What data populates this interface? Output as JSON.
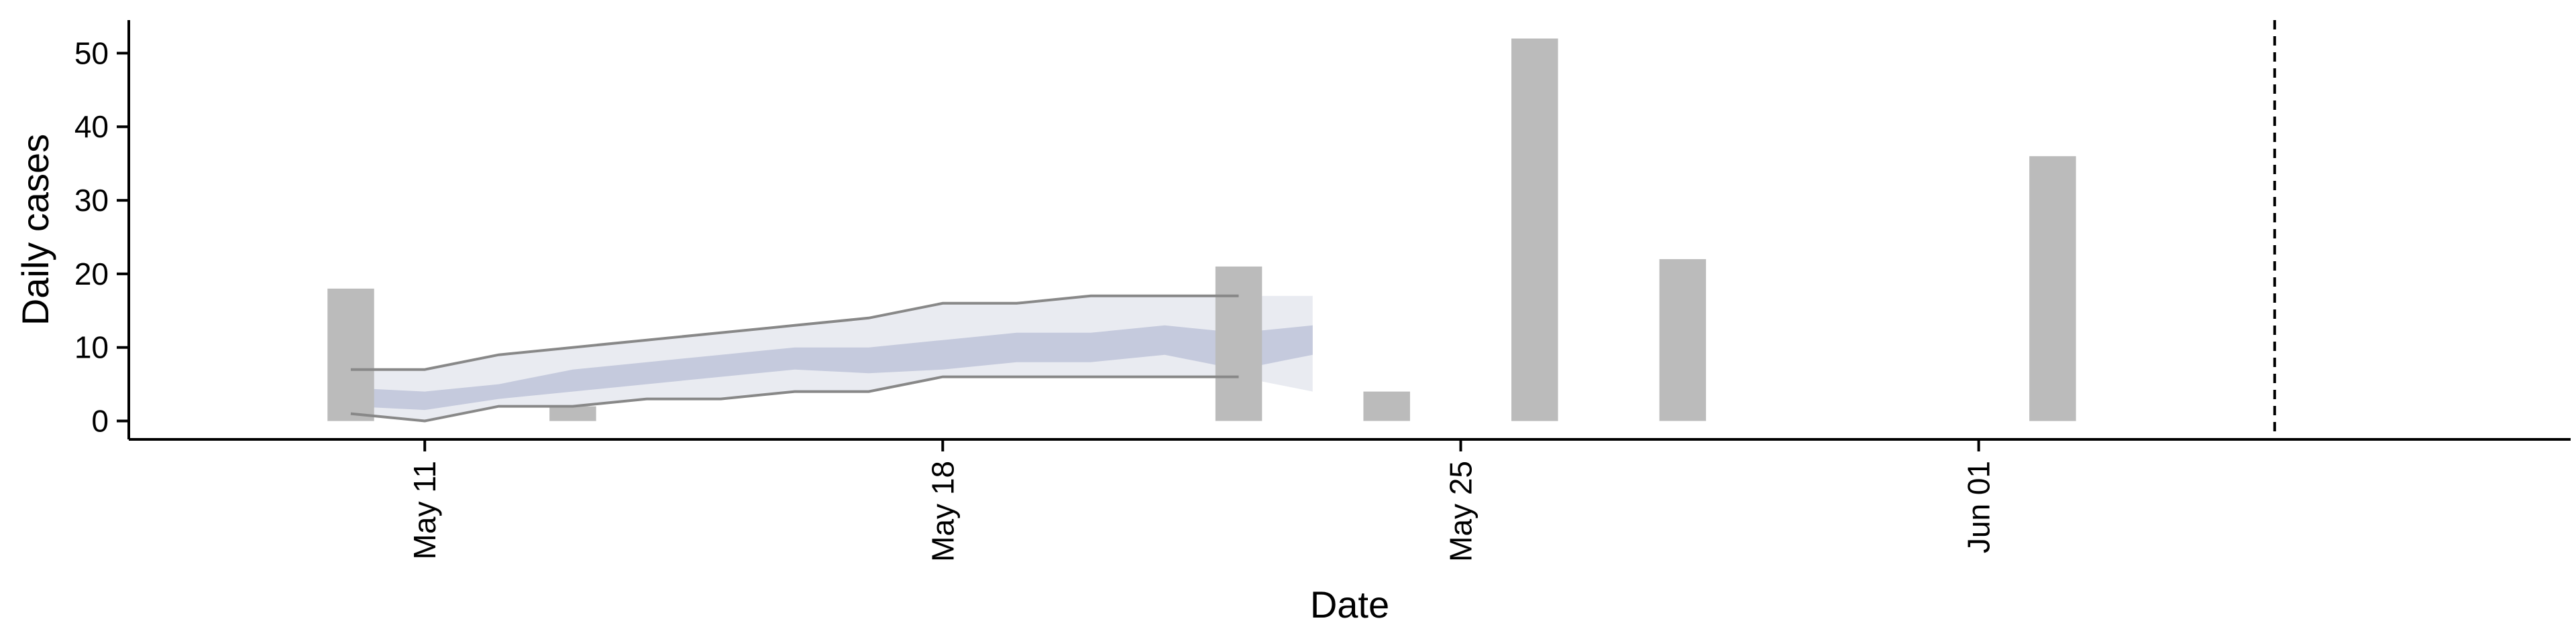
{
  "chart_data": {
    "type": "bar",
    "xlabel": "Date",
    "ylabel": "Daily cases",
    "ylim": [
      -2.5,
      54.5
    ],
    "xlim": [
      "2020-05-07",
      "2020-06-09"
    ],
    "yticks": [
      0,
      10,
      20,
      30,
      40,
      50
    ],
    "xticks": [
      {
        "date": "2020-05-11",
        "label": "May 11"
      },
      {
        "date": "2020-05-18",
        "label": "May 18"
      },
      {
        "date": "2020-05-25",
        "label": "May 25"
      },
      {
        "date": "2020-06-01",
        "label": "Jun 01"
      }
    ],
    "bars": [
      {
        "date": "2020-05-10",
        "value": 18
      },
      {
        "date": "2020-05-13",
        "value": 2
      },
      {
        "date": "2020-05-22",
        "value": 21
      },
      {
        "date": "2020-05-24",
        "value": 4
      },
      {
        "date": "2020-05-26",
        "value": 52
      },
      {
        "date": "2020-05-28",
        "value": 22
      },
      {
        "date": "2020-06-02",
        "value": 36
      }
    ],
    "interval_bands": [
      {
        "name": "outer",
        "x": [
          "2020-05-10",
          "2020-05-11",
          "2020-05-12",
          "2020-05-13",
          "2020-05-14",
          "2020-05-15",
          "2020-05-16",
          "2020-05-17",
          "2020-05-18",
          "2020-05-19",
          "2020-05-20",
          "2020-05-21",
          "2020-05-22",
          "2020-05-23"
        ],
        "lower": [
          1,
          0,
          2,
          2,
          3,
          3,
          4,
          4,
          6,
          6,
          6,
          6,
          6,
          4
        ],
        "upper": [
          7,
          7,
          9,
          10,
          11,
          12,
          13,
          14,
          16,
          16,
          17,
          17,
          17,
          17
        ]
      },
      {
        "name": "inner",
        "x": [
          "2020-05-10",
          "2020-05-11",
          "2020-05-12",
          "2020-05-13",
          "2020-05-14",
          "2020-05-15",
          "2020-05-16",
          "2020-05-17",
          "2020-05-18",
          "2020-05-19",
          "2020-05-20",
          "2020-05-21",
          "2020-05-22",
          "2020-05-23"
        ],
        "lower": [
          2,
          1.5,
          3,
          4,
          5,
          6,
          7,
          6.5,
          7,
          8,
          8,
          9,
          7,
          9
        ],
        "upper": [
          4.5,
          4,
          5,
          7,
          8,
          9,
          10,
          10,
          11,
          12,
          12,
          13,
          12,
          13
        ]
      }
    ],
    "outline_lines": [
      {
        "name": "upper-outline",
        "x": [
          "2020-05-10",
          "2020-05-11",
          "2020-05-12",
          "2020-05-13",
          "2020-05-14",
          "2020-05-15",
          "2020-05-16",
          "2020-05-17",
          "2020-05-18",
          "2020-05-19",
          "2020-05-20",
          "2020-05-21",
          "2020-05-22"
        ],
        "y": [
          7,
          7,
          9,
          10,
          11,
          12,
          13,
          14,
          16,
          16,
          17,
          17,
          17
        ]
      },
      {
        "name": "lower-outline",
        "x": [
          "2020-05-10",
          "2020-05-11",
          "2020-05-12",
          "2020-05-13",
          "2020-05-14",
          "2020-05-15",
          "2020-05-16",
          "2020-05-17",
          "2020-05-18",
          "2020-05-19",
          "2020-05-20",
          "2020-05-21",
          "2020-05-22"
        ],
        "y": [
          1,
          0,
          2,
          2,
          3,
          3,
          4,
          4,
          6,
          6,
          6,
          6,
          6
        ]
      }
    ],
    "vline": {
      "date": "2020-06-05",
      "style": "dashed"
    },
    "grid": false,
    "colors": {
      "bars": "#bbbbbb",
      "outer_band": "#e9ebf1",
      "inner_band": "#c5cadd",
      "outline": "#888888",
      "vline": "#000000"
    }
  }
}
